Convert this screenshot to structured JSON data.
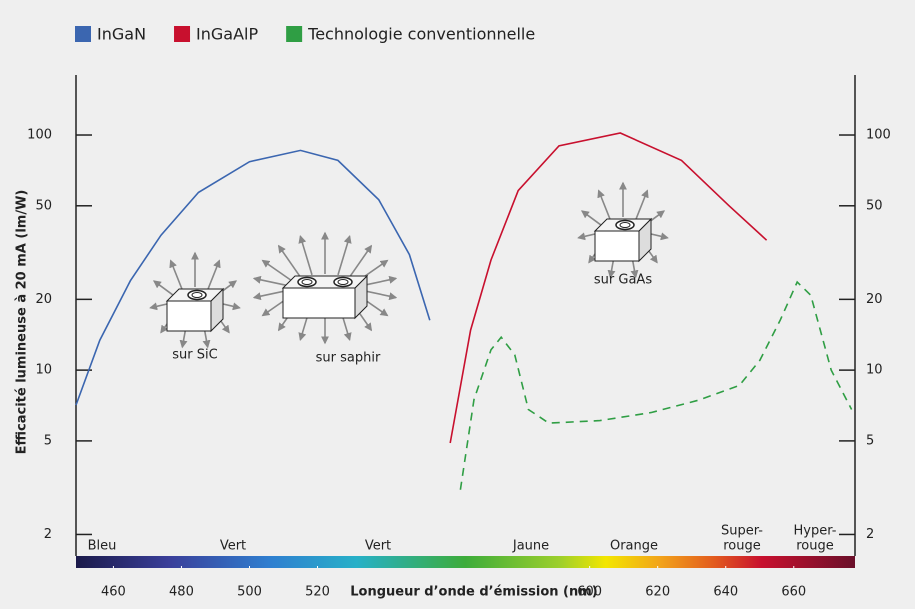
{
  "chart_data": {
    "type": "line",
    "log_y": true,
    "x_label": "Longueur d’onde d’émission (nm)",
    "y_label": "Efficacité lumineuse à 20 mA (lm/W)",
    "xlim": [
      449,
      678
    ],
    "ylim": [
      1.44,
      180
    ],
    "xticks": [
      460,
      480,
      500,
      520,
      600,
      620,
      640,
      660
    ],
    "yticks": [
      2,
      5,
      10,
      20,
      50,
      100
    ],
    "legend": "top-left",
    "series": [
      {
        "name": "InGaN",
        "color": "#3b66b0",
        "style": "solid",
        "x": [
          449,
          456,
          465,
          474,
          485,
          500,
          515,
          526,
          538,
          547,
          553
        ],
        "values": [
          7.1,
          13.4,
          24,
          37.5,
          57,
          77,
          86,
          78,
          53,
          31,
          16.3
        ]
      },
      {
        "name": "InGaAlP",
        "color": "#c8102e",
        "style": "solid",
        "x": [
          559,
          565,
          571,
          579,
          591,
          609,
          627,
          641,
          652
        ],
        "values": [
          4.9,
          14.8,
          29.4,
          58,
          90,
          102,
          78,
          50,
          35.7
        ]
      },
      {
        "name": "Technologie conventionnelle",
        "color": "#2f9e44",
        "style": "dashed",
        "x": [
          562,
          566,
          571,
          574,
          578,
          582,
          588,
          603,
          618,
          632,
          644,
          650,
          656,
          661,
          665,
          671,
          677
        ],
        "values": [
          3.1,
          7.5,
          12.2,
          13.8,
          11.6,
          6.8,
          5.95,
          6.1,
          6.6,
          7.45,
          8.6,
          11,
          16.3,
          23.7,
          20.8,
          10,
          6.8
        ]
      }
    ],
    "band_labels": [
      [
        "Bleu"
      ],
      [
        "Vert"
      ],
      [
        "Vert"
      ],
      [
        "Jaune"
      ],
      [
        "Orange"
      ],
      [
        "Super-",
        "rouge"
      ],
      [
        "Hyper-",
        "rouge"
      ]
    ],
    "annotations": [
      "sur SiC",
      "sur saphir",
      "sur GaAs"
    ]
  }
}
